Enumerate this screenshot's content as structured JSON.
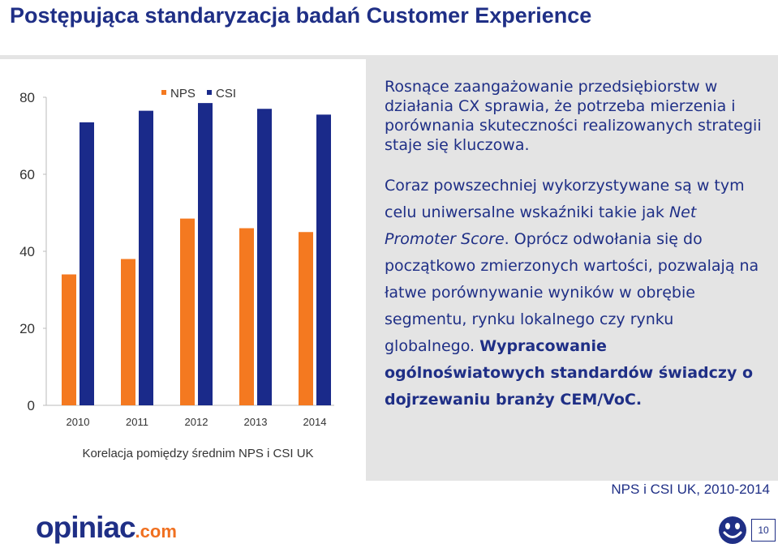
{
  "slide": {
    "title": "Postępująca standaryzacja badań Customer Experience",
    "source_label": "NPS i CSI UK, 2010-2014",
    "page_number": "10",
    "logo_text": "opiniac",
    "logo_suffix": ".com"
  },
  "text": {
    "para1": "Rosnące zaangażowanie przedsiębiorstw w działania CX sprawia, że potrzeba mierzenia i porównania skuteczności realizowanych strategii staje się kluczowa.",
    "para2_a": "Coraz powszechniej wykorzystywane są w tym celu uniwersalne wskaźniki takie jak ",
    "para2_italic": "Net Promoter Score",
    "para2_b": ". Oprócz odwołania się do początkowo zmierzonych wartości, pozwalają na łatwe porównywanie wyników w obrębie segmentu, rynku lokalnego czy rynku globalnego. ",
    "para2_bold": "Wypracowanie ogólnoświatowych standardów świadczy o dojrzewaniu branży CEM/VoC."
  },
  "chart_data": {
    "type": "bar",
    "categories": [
      "2010",
      "2011",
      "2012",
      "2013",
      "2014"
    ],
    "series": [
      {
        "name": "NPS",
        "color": "#f47920",
        "values": [
          34,
          38,
          48.5,
          46,
          45
        ]
      },
      {
        "name": "CSI",
        "color": "#1a2a8a",
        "values": [
          73.5,
          76.5,
          78.5,
          77,
          75.5
        ]
      }
    ],
    "y_ticks": [
      "0",
      "20",
      "40",
      "60",
      "80"
    ],
    "ylim": [
      0,
      80
    ],
    "caption": "Korelacja pomiędzy średnim NPS i CSI UK",
    "legend_position": "top",
    "grid": false
  },
  "colors": {
    "title": "#1f2f86",
    "accent_orange": "#f47920",
    "navy": "#1a2a8a"
  },
  "icons": {
    "smiley": "smiley-face-icon"
  }
}
